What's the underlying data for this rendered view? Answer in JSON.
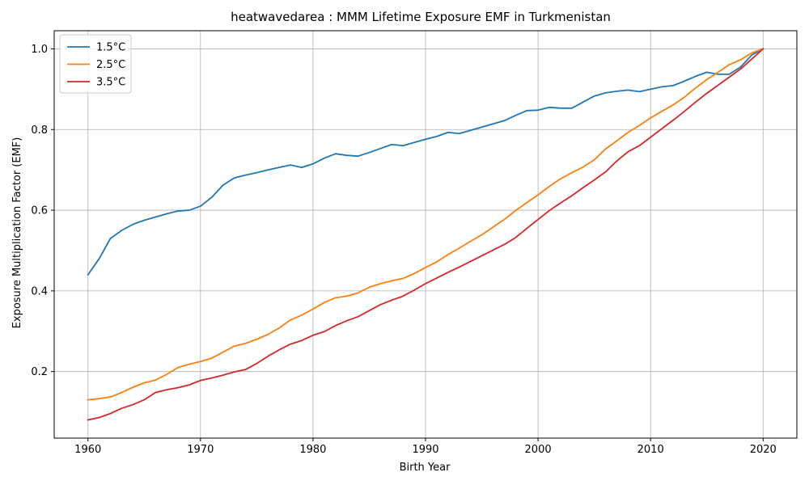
{
  "chart_data": {
    "type": "line",
    "title": "heatwavedarea : MMM Lifetime Exposure EMF in Turkmenistan",
    "xlabel": "Birth Year",
    "ylabel": "Exposure Multiplication Factor (EMF)",
    "xlim": [
      1957,
      2023
    ],
    "ylim": [
      0.035,
      1.045
    ],
    "xticks": [
      1960,
      1970,
      1980,
      1990,
      2000,
      2010,
      2020
    ],
    "yticks": [
      0.2,
      0.4,
      0.6,
      0.8,
      1.0
    ],
    "xtick_labels": [
      "1960",
      "1970",
      "1980",
      "1990",
      "2000",
      "2010",
      "2020"
    ],
    "ytick_labels": [
      "0.2",
      "0.4",
      "0.6",
      "0.8",
      "1.0"
    ],
    "grid": true,
    "legend_position": "top-left",
    "x": [
      1960,
      1961,
      1962,
      1963,
      1964,
      1965,
      1966,
      1967,
      1968,
      1969,
      1970,
      1971,
      1972,
      1973,
      1974,
      1975,
      1976,
      1977,
      1978,
      1979,
      1980,
      1981,
      1982,
      1983,
      1984,
      1985,
      1986,
      1987,
      1988,
      1989,
      1990,
      1991,
      1992,
      1993,
      1994,
      1995,
      1996,
      1997,
      1998,
      1999,
      2000,
      2001,
      2002,
      2003,
      2004,
      2005,
      2006,
      2007,
      2008,
      2009,
      2010,
      2011,
      2012,
      2013,
      2014,
      2015,
      2016,
      2017,
      2018,
      2019,
      2020
    ],
    "series": [
      {
        "name": "1.5°C",
        "color": "#1f77b4",
        "values": [
          0.44,
          0.48,
          0.53,
          0.55,
          0.565,
          0.575,
          0.583,
          0.591,
          0.598,
          0.6,
          0.61,
          0.632,
          0.662,
          0.68,
          0.687,
          0.693,
          0.7,
          0.706,
          0.712,
          0.706,
          0.715,
          0.729,
          0.74,
          0.736,
          0.734,
          0.743,
          0.753,
          0.763,
          0.76,
          0.768,
          0.776,
          0.783,
          0.793,
          0.79,
          0.798,
          0.806,
          0.814,
          0.822,
          0.835,
          0.847,
          0.848,
          0.855,
          0.853,
          0.853,
          0.868,
          0.883,
          0.891,
          0.895,
          0.898,
          0.894,
          0.9,
          0.906,
          0.909,
          0.92,
          0.932,
          0.942,
          0.937,
          0.937,
          0.955,
          0.985,
          1.0
        ]
      },
      {
        "name": "2.5°C",
        "color": "#ff7f0e",
        "values": [
          0.13,
          0.133,
          0.137,
          0.148,
          0.161,
          0.172,
          0.179,
          0.193,
          0.21,
          0.218,
          0.225,
          0.233,
          0.248,
          0.263,
          0.27,
          0.28,
          0.292,
          0.308,
          0.328,
          0.34,
          0.355,
          0.371,
          0.383,
          0.387,
          0.395,
          0.409,
          0.418,
          0.425,
          0.431,
          0.443,
          0.458,
          0.472,
          0.49,
          0.506,
          0.523,
          0.539,
          0.558,
          0.577,
          0.599,
          0.619,
          0.638,
          0.659,
          0.678,
          0.693,
          0.707,
          0.725,
          0.752,
          0.772,
          0.793,
          0.81,
          0.829,
          0.845,
          0.861,
          0.88,
          0.903,
          0.924,
          0.942,
          0.961,
          0.973,
          0.99,
          1.0
        ]
      },
      {
        "name": "3.5°C",
        "color": "#d62728",
        "values": [
          0.08,
          0.086,
          0.096,
          0.109,
          0.118,
          0.13,
          0.148,
          0.155,
          0.16,
          0.167,
          0.178,
          0.184,
          0.191,
          0.199,
          0.205,
          0.22,
          0.238,
          0.254,
          0.268,
          0.277,
          0.29,
          0.299,
          0.314,
          0.326,
          0.336,
          0.351,
          0.366,
          0.377,
          0.387,
          0.402,
          0.418,
          0.432,
          0.446,
          0.459,
          0.473,
          0.487,
          0.501,
          0.515,
          0.532,
          0.555,
          0.577,
          0.599,
          0.618,
          0.636,
          0.656,
          0.675,
          0.695,
          0.722,
          0.745,
          0.76,
          0.781,
          0.802,
          0.823,
          0.845,
          0.868,
          0.89,
          0.91,
          0.93,
          0.95,
          0.975,
          1.0
        ]
      }
    ]
  }
}
